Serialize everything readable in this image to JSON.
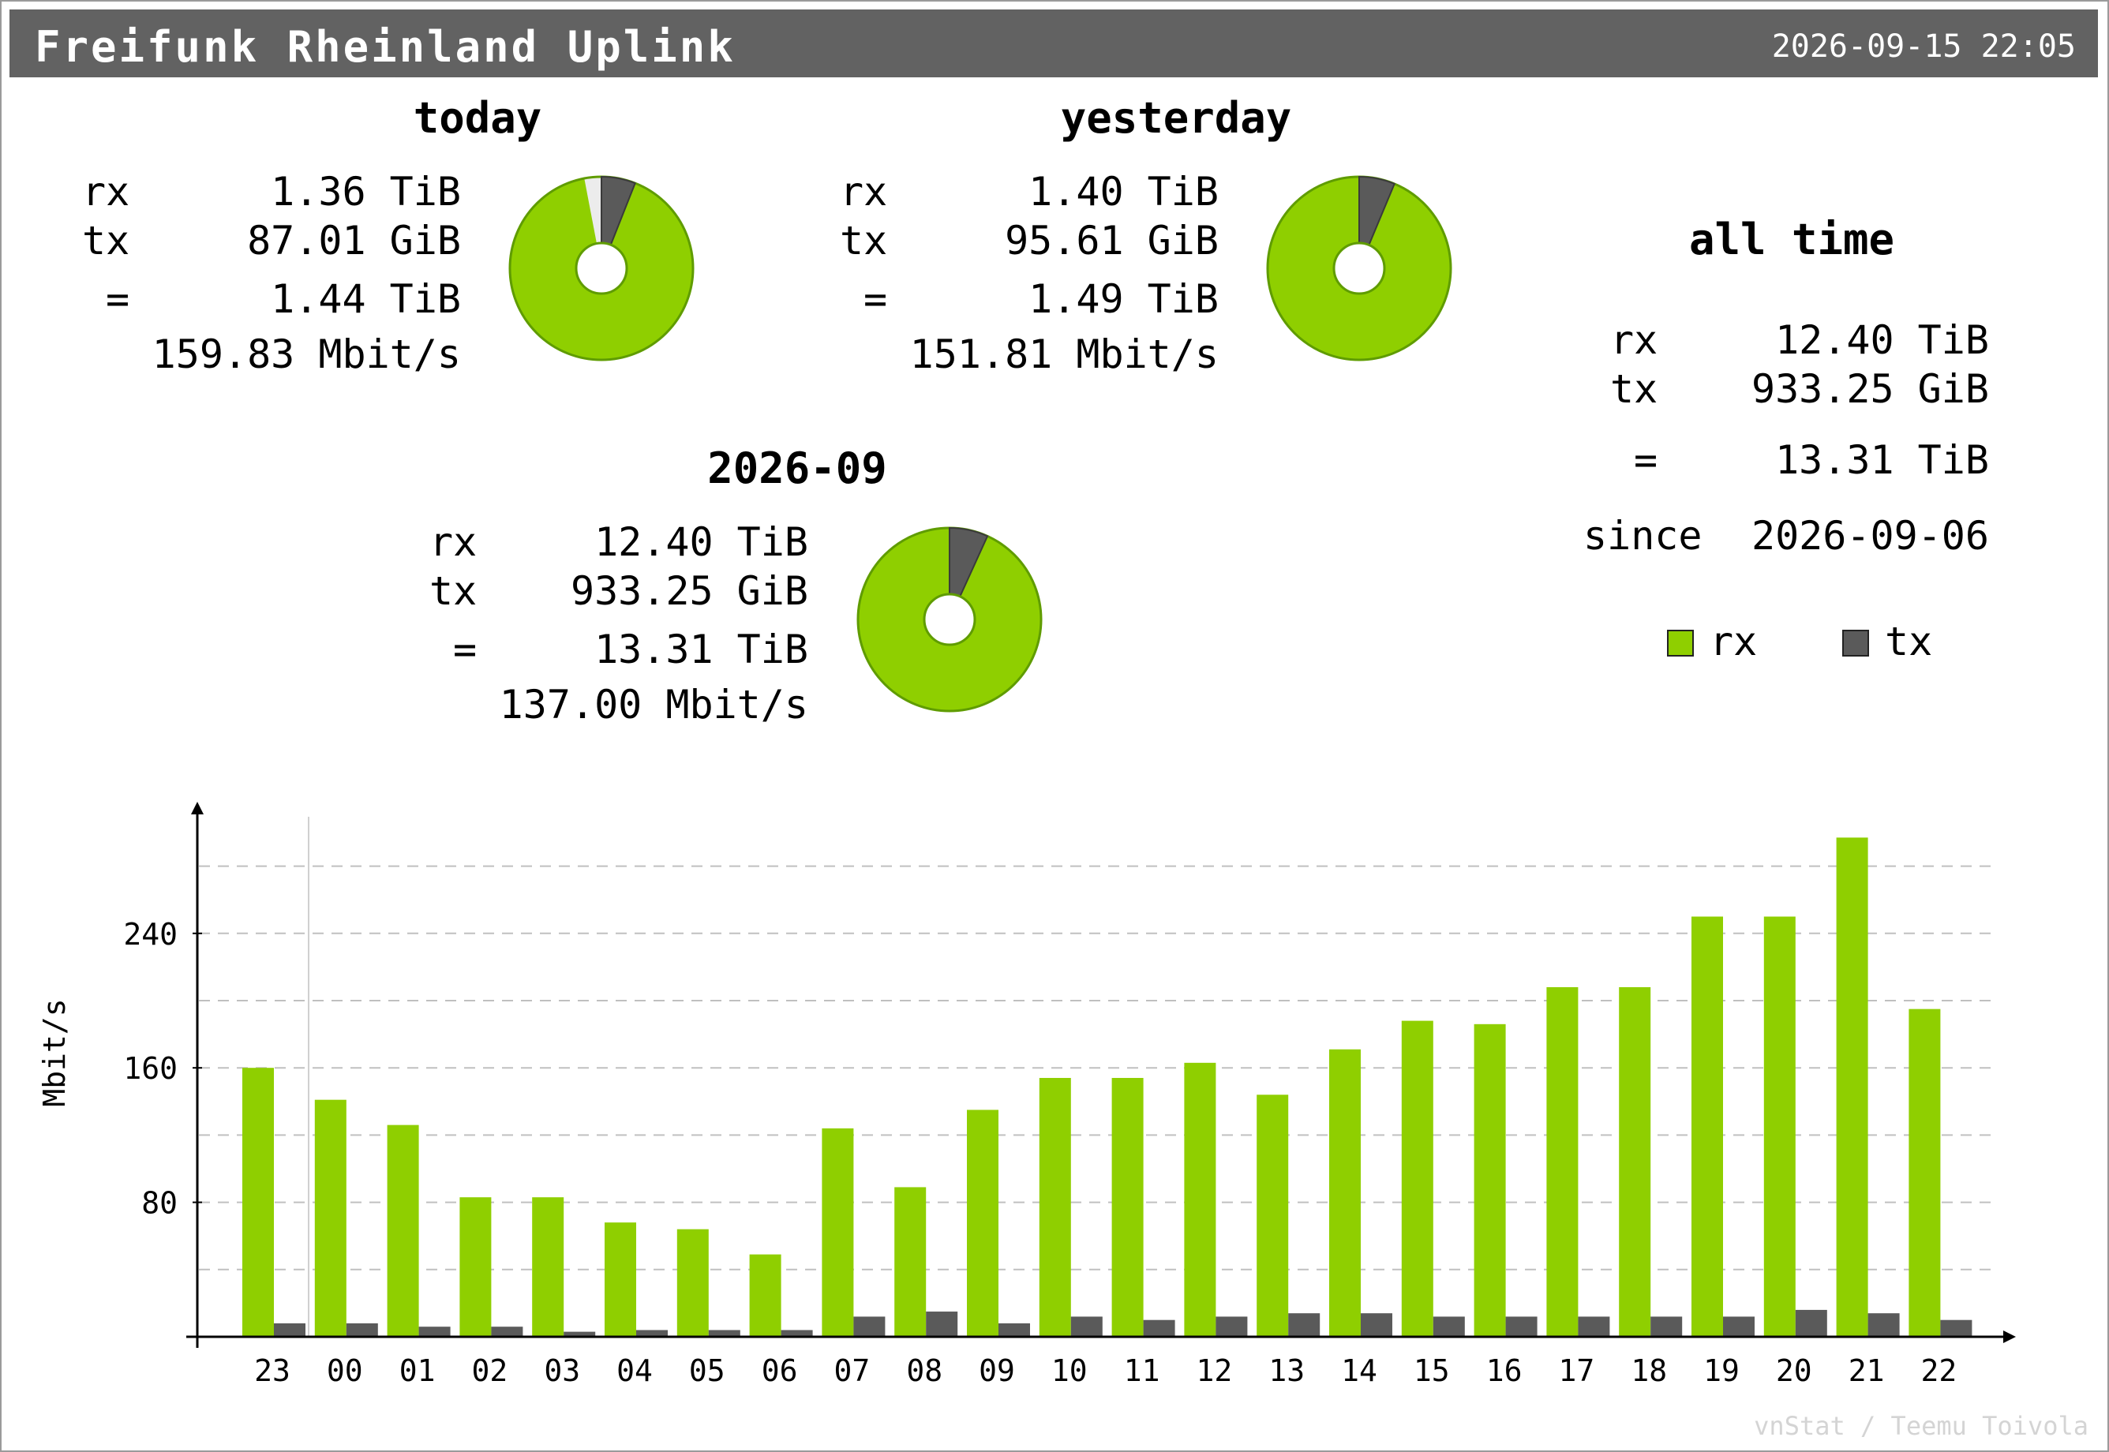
{
  "header": {
    "title": "Freifunk Rheinland Uplink",
    "timestamp": "2026-09-15 22:05"
  },
  "today": {
    "title": "today",
    "rx_label": "rx",
    "tx_label": "tx",
    "eq_label": "=",
    "rx": "1.36 TiB",
    "tx": "87.01 GiB",
    "total": "1.44 TiB",
    "rate": "159.83 Mbit/s",
    "pie": {
      "rx_share": 0.94,
      "tx_share": 0.06,
      "remaining": 0.03
    }
  },
  "yesterday": {
    "title": "yesterday",
    "rx_label": "rx",
    "tx_label": "tx",
    "eq_label": "=",
    "rx": "1.40 TiB",
    "tx": "95.61 GiB",
    "total": "1.49 TiB",
    "rate": "151.81 Mbit/s",
    "pie": {
      "rx_share": 0.937,
      "tx_share": 0.063,
      "remaining": 0
    }
  },
  "month": {
    "title": "2026-09",
    "rx_label": "rx",
    "tx_label": "tx",
    "eq_label": "=",
    "rx": "12.40 TiB",
    "tx": "933.25 GiB",
    "total": "13.31 TiB",
    "rate": "137.00 Mbit/s",
    "pie": {
      "rx_share": 0.932,
      "tx_share": 0.068,
      "remaining": 0
    }
  },
  "alltime": {
    "title": "all time",
    "rx_label": "rx",
    "tx_label": "tx",
    "eq_label": "=",
    "rx": "12.40 TiB",
    "tx": "933.25 GiB",
    "total": "13.31 TiB",
    "since_label": "since",
    "since": "2026-09-06"
  },
  "legend": {
    "rx": "rx",
    "tx": "tx"
  },
  "colors": {
    "rx": "#8fcf00",
    "rx_border": "#5f9c00",
    "tx": "#5a5a5a",
    "header": "#626262",
    "grid": "#c0c0c0"
  },
  "chart_data": {
    "type": "bar",
    "ylabel": "Mbit/s",
    "categories": [
      "23",
      "00",
      "01",
      "02",
      "03",
      "04",
      "05",
      "06",
      "07",
      "08",
      "09",
      "10",
      "11",
      "12",
      "13",
      "14",
      "15",
      "16",
      "17",
      "18",
      "19",
      "20",
      "21",
      "22"
    ],
    "series": [
      {
        "name": "rx",
        "values": [
          160,
          141,
          126,
          83,
          83,
          68,
          64,
          49,
          124,
          89,
          135,
          154,
          154,
          163,
          144,
          171,
          188,
          186,
          208,
          208,
          250,
          250,
          297,
          195
        ]
      },
      {
        "name": "tx",
        "values": [
          8,
          8,
          6,
          6,
          3,
          4,
          4,
          4,
          12,
          15,
          8,
          12,
          10,
          12,
          14,
          14,
          12,
          12,
          12,
          12,
          12,
          16,
          14,
          10
        ]
      }
    ],
    "yticks": [
      80,
      160,
      240
    ],
    "ylim": [
      0,
      300
    ],
    "grid": true
  },
  "footer": "vnStat / Teemu Toivola"
}
